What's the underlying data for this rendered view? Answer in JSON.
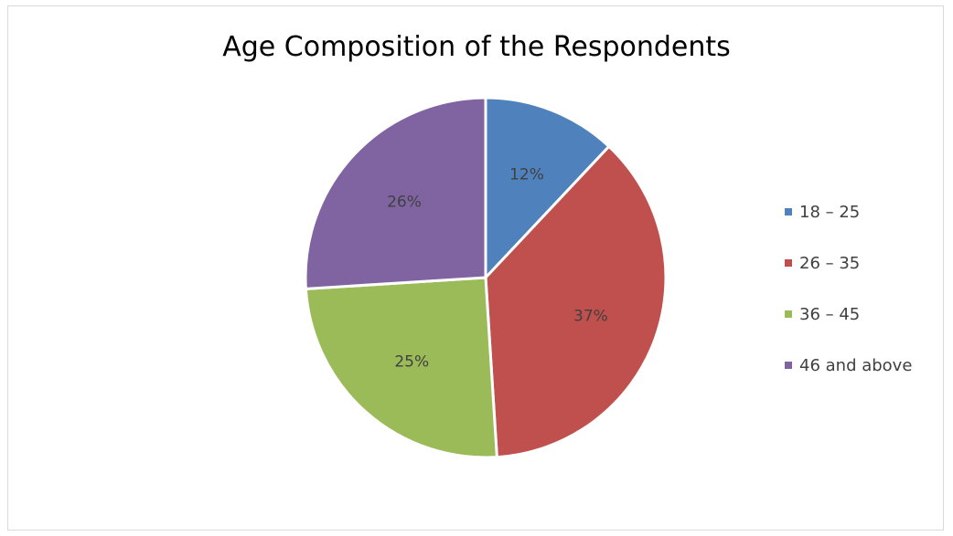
{
  "chart_data": {
    "type": "pie",
    "title": "Age Composition of the Respondents",
    "categories": [
      "18 – 25",
      "26 – 35",
      "36 – 45",
      "46 and above"
    ],
    "values": [
      12,
      37,
      25,
      26
    ],
    "labels": [
      "12%",
      "37%",
      "25%",
      "26%"
    ],
    "colors": [
      "#4F81BD",
      "#C0504D",
      "#9BBB59",
      "#8064A2"
    ],
    "legend_position": "right"
  }
}
